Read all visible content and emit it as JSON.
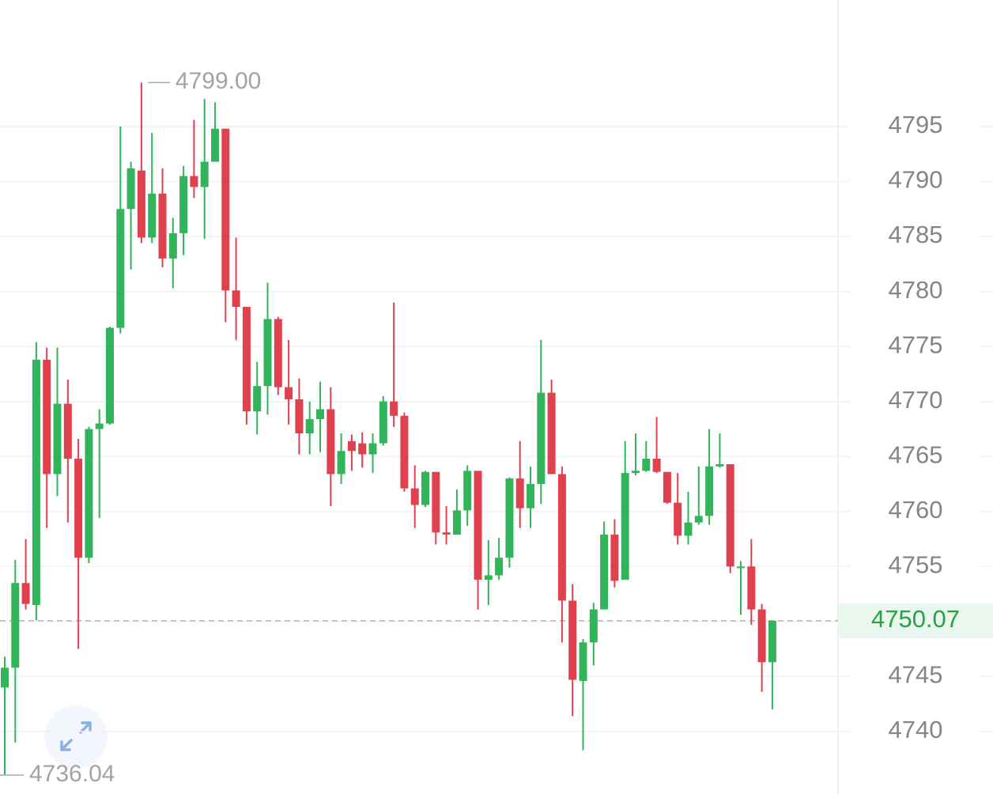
{
  "chart_data": {
    "type": "candlestick",
    "open": [
      4744,
      4745.8,
      4753.5,
      4751.5,
      4773.8,
      4763.4,
      4769.8,
      4764.8,
      4755.8,
      4767.5,
      4768,
      4776.7,
      4787.5,
      4791,
      4784.9,
      4788.9,
      4783,
      4785.3,
      4790.5,
      4789.5,
      4791.8,
      4794.8,
      4780.1,
      4778.6,
      4769.1,
      4771.4,
      4777.5,
      4771.3,
      4770.2,
      4767.1,
      4768.4,
      4769.3,
      4763.4,
      4766.4,
      4766.2,
      4765.2,
      4766.2,
      4770,
      4768.7,
      4762.1,
      4760.6,
      4763.6,
      4758.1,
      4757.9,
      4760.1,
      4763.7,
      4753.8,
      4754.2,
      4755.8,
      4763,
      4760.3,
      4762.5,
      4770.8,
      4763.4,
      4751.9,
      4744.6,
      4748.1,
      4751.1,
      4757.9,
      4753.8,
      4763.5,
      4763.7,
      4764.8,
      4763.6,
      4760.8,
      4757.8,
      4759,
      4759.6,
      4764.1,
      4764.3,
      4754.9,
      4755,
      4751.1,
      4746.3
    ],
    "high": [
      4746.8,
      4755.6,
      4757.5,
      4775.4,
      4774.9,
      4774.9,
      4772,
      4766.6,
      4767.7,
      4769.3,
      4776.8,
      4795,
      4791.8,
      4799,
      4794.4,
      4791.2,
      4786.7,
      4791.4,
      4795.6,
      4797.5,
      4797.2,
      4794.8,
      4784.9,
      4778.6,
      4773.6,
      4780.8,
      4777.7,
      4775.6,
      4772.1,
      4770,
      4771.8,
      4771.3,
      4767.1,
      4767,
      4767.2,
      4767.1,
      4770.5,
      4779,
      4769,
      4764.2,
      4763.7,
      4763.6,
      4760.5,
      4762,
      4764.2,
      4763.7,
      4757.4,
      4757.6,
      4763.1,
      4766.4,
      4764.1,
      4775.6,
      4772,
      4764.1,
      4753.4,
      4748.4,
      4751.7,
      4759.1,
      4759.3,
      4766.4,
      4767.1,
      4766.4,
      4768.6,
      4763.6,
      4763.5,
      4761.8,
      4764.1,
      4767.5,
      4767.1,
      4764.3,
      4755.5,
      4757.5,
      4751.6,
      4750.07
    ],
    "low": [
      4736.04,
      4739,
      4751.1,
      4750.1,
      4758.5,
      4761.4,
      4759,
      4747.5,
      4755.3,
      4759.4,
      4767.9,
      4776.2,
      4782,
      4784.4,
      4784.4,
      4782.2,
      4780.3,
      4783.3,
      4788.5,
      4784.8,
      4791.8,
      4777.2,
      4775.6,
      4767.9,
      4767,
      4768.8,
      4770.6,
      4767.9,
      4765.2,
      4765.2,
      4765.4,
      4760.5,
      4762.5,
      4763.7,
      4764,
      4763.5,
      4766,
      4767.7,
      4761.8,
      4758.5,
      4760.4,
      4757,
      4757,
      4757.9,
      4758.7,
      4751.1,
      4751.5,
      4753.8,
      4754.9,
      4758.5,
      4758.5,
      4760.7,
      4763.4,
      4748.1,
      4741.4,
      4738.3,
      4746,
      4751.1,
      4753.1,
      4753.8,
      4763.3,
      4763.6,
      4763.5,
      4760.7,
      4757,
      4757,
      4758.8,
      4758.8,
      4764,
      4754.4,
      4750.6,
      4749.7,
      4743.6,
      4742
    ],
    "close": [
      4745.8,
      4753.5,
      4751.6,
      4773.8,
      4763.4,
      4769.8,
      4764.8,
      4755.8,
      4767.5,
      4768,
      4776.7,
      4787.5,
      4791.2,
      4784.9,
      4788.9,
      4783,
      4785.3,
      4790.5,
      4789.5,
      4791.8,
      4794.8,
      4780.1,
      4778.6,
      4769.1,
      4771.4,
      4777.5,
      4771.3,
      4770.2,
      4767.1,
      4768.4,
      4769.3,
      4763.4,
      4765.5,
      4765.5,
      4765.2,
      4766.2,
      4770,
      4768.7,
      4762.1,
      4760.6,
      4763.6,
      4758.1,
      4757.9,
      4760.1,
      4763.7,
      4753.8,
      4754.2,
      4755.8,
      4763,
      4760.3,
      4762.5,
      4770.8,
      4763.4,
      4751.9,
      4744.7,
      4748.1,
      4751.1,
      4757.9,
      4753.7,
      4763.5,
      4763.7,
      4764.8,
      4763.6,
      4760.8,
      4757.8,
      4759,
      4759.6,
      4764.1,
      4764.3,
      4755,
      4755,
      4751.1,
      4746.3,
      4750.07
    ],
    "up_color": "#32b45a",
    "down_color": "#e0414f",
    "ylim": [
      4734.32,
      4806.5
    ],
    "yticks": [
      4740,
      4745,
      4750,
      4755,
      4760,
      4765,
      4770,
      4775,
      4780,
      4785,
      4790,
      4795
    ],
    "grid": true,
    "annotations": {
      "max": {
        "value": 4799,
        "label": "4799.00"
      },
      "min": {
        "value": 4736.04,
        "label": "4736.04"
      },
      "last": {
        "value": 4750.07,
        "label": "4750.07",
        "color": "#2aa048",
        "background": "#eaf7ee"
      }
    }
  }
}
